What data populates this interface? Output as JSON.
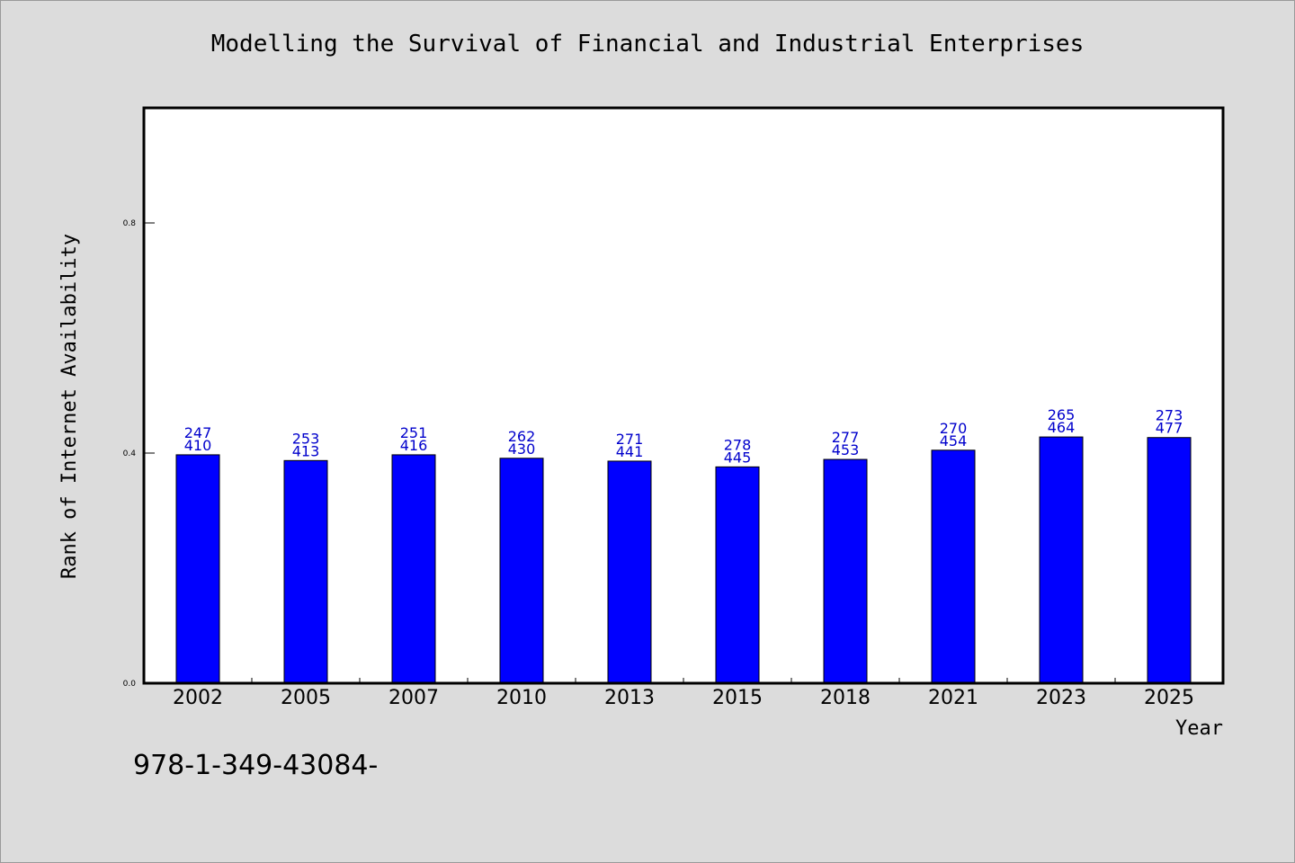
{
  "chart_data": {
    "type": "bar",
    "title": "Modelling the Survival of Financial and Industrial Enterprises",
    "xlabel": "Year",
    "ylabel": "Rank of Internet Availability",
    "categories": [
      "2002",
      "2005",
      "2007",
      "2010",
      "2013",
      "2015",
      "2018",
      "2021",
      "2023",
      "2025"
    ],
    "series": [
      {
        "values": [
          0.397,
          0.387,
          0.397,
          0.391,
          0.386,
          0.376,
          0.389,
          0.405,
          0.428,
          0.427
        ]
      }
    ],
    "data_labels": {
      "upper": [
        "247",
        "253",
        "251",
        "262",
        "271",
        "278",
        "277",
        "270",
        "265",
        "273"
      ],
      "lower": [
        "410",
        "413",
        "416",
        "430",
        "441",
        "445",
        "453",
        "454",
        "464",
        "477"
      ]
    },
    "y_ticks": [
      "0.0",
      "0.4",
      "0.8"
    ],
    "ylim": [
      0,
      1.0
    ],
    "grid": false,
    "colors": {
      "bar": "#0000ff",
      "data_label": "#0000cc",
      "background": "#dcdcdc",
      "plot_area": "#ffffff"
    }
  },
  "footer": {
    "code": "978-1-349-43084-"
  }
}
